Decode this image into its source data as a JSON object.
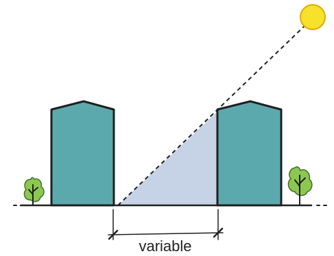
{
  "diagram": {
    "dimension_label": "variable",
    "colors": {
      "building": "#5ba9ad",
      "shadow": "#c6d2e5",
      "sun": "#f7e12a",
      "sun_outline": "#e3a800",
      "tree": "#8cc850",
      "ink": "#1f1f1f"
    },
    "icons": {
      "sun": "sun-icon",
      "tree": "tree-icon"
    }
  }
}
